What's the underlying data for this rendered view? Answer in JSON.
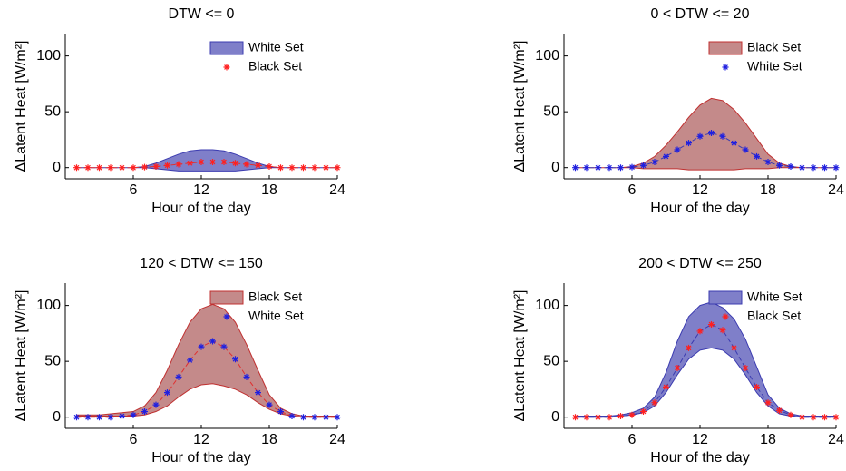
{
  "chart_data": [
    {
      "type": "band",
      "title": "DTW <= 0",
      "xlabel": "Hour of the day",
      "ylabel": "ΔLatent Heat [W/m²]",
      "x": [
        1,
        2,
        3,
        4,
        5,
        6,
        7,
        8,
        9,
        10,
        11,
        12,
        13,
        14,
        15,
        16,
        17,
        18,
        19,
        20,
        21,
        22,
        23,
        24
      ],
      "series": [
        {
          "name": "White Set",
          "color": "#7f7fc9",
          "edge": "#3b3bb0",
          "upper": [
            0,
            0,
            0,
            0,
            0,
            0,
            1,
            4,
            8,
            12,
            15,
            16,
            16,
            15,
            12,
            8,
            4,
            1,
            0,
            0,
            0,
            0,
            0,
            0
          ],
          "lower": [
            0,
            0,
            0,
            0,
            0,
            0,
            0,
            -1,
            -2,
            -3,
            -3,
            -3,
            -3,
            -3,
            -3,
            -2,
            -1,
            0,
            0,
            0,
            0,
            0,
            0,
            0
          ]
        },
        {
          "name": "Black Set",
          "color": "#ff2020",
          "line_color": "#e03030",
          "values": [
            0,
            0,
            0,
            0,
            0,
            0,
            0.5,
            1,
            2,
            3,
            4,
            5,
            5,
            5,
            4,
            3,
            2,
            1,
            0,
            0,
            0,
            0,
            0,
            0
          ]
        }
      ],
      "xlim": [
        0,
        24
      ],
      "xticks": [
        6,
        12,
        18,
        24
      ],
      "ylim": [
        -10,
        120
      ],
      "yticks": [
        0,
        50,
        100
      ]
    },
    {
      "type": "band",
      "title": "0 < DTW <= 20",
      "xlabel": "Hour of the day",
      "ylabel": "ΔLatent Heat [W/m²]",
      "x": [
        1,
        2,
        3,
        4,
        5,
        6,
        7,
        8,
        9,
        10,
        11,
        12,
        13,
        14,
        15,
        16,
        17,
        18,
        19,
        20,
        21,
        22,
        23,
        24
      ],
      "series": [
        {
          "name": "Black Set",
          "color": "#c48a8a",
          "edge": "#c03030",
          "upper": [
            0,
            0,
            0,
            0,
            0,
            1,
            4,
            10,
            20,
            32,
            45,
            56,
            62,
            60,
            52,
            40,
            26,
            12,
            4,
            1,
            0,
            0,
            0,
            0
          ],
          "lower": [
            0,
            0,
            0,
            0,
            0,
            0,
            -1,
            -1,
            -1,
            -1,
            -2,
            -2,
            -2,
            -2,
            -2,
            -1,
            -1,
            -1,
            0,
            0,
            0,
            0,
            0,
            0
          ]
        },
        {
          "name": "White Set",
          "color": "#2020e0",
          "line_color": "#3b3bb0",
          "values": [
            0,
            0,
            0,
            0,
            0,
            0.5,
            2,
            5,
            10,
            16,
            22,
            28,
            31,
            28,
            22,
            16,
            10,
            5,
            2,
            1,
            0,
            0,
            0,
            0
          ]
        }
      ],
      "xlim": [
        0,
        24
      ],
      "xticks": [
        6,
        12,
        18,
        24
      ],
      "ylim": [
        -10,
        120
      ],
      "yticks": [
        0,
        50,
        100
      ]
    },
    {
      "type": "band",
      "title": "120 < DTW <= 150",
      "xlabel": "Hour of the day",
      "ylabel": "ΔLatent Heat [W/m²]",
      "x": [
        1,
        2,
        3,
        4,
        5,
        6,
        7,
        8,
        9,
        10,
        11,
        12,
        13,
        14,
        15,
        16,
        17,
        18,
        19,
        20,
        21,
        22,
        23,
        24
      ],
      "series": [
        {
          "name": "Black Set",
          "color": "#c48a8a",
          "edge": "#c03030",
          "upper": [
            2,
            2,
            2,
            3,
            4,
            5,
            10,
            22,
            42,
            65,
            85,
            97,
            101,
            97,
            85,
            65,
            42,
            20,
            8,
            3,
            1,
            1,
            1,
            1
          ],
          "lower": [
            1,
            1,
            1,
            1,
            1,
            1,
            2,
            5,
            10,
            18,
            25,
            29,
            30,
            28,
            25,
            20,
            13,
            7,
            3,
            1,
            0,
            0,
            0,
            0
          ]
        },
        {
          "name": "White Set",
          "color": "#2020e0",
          "line_color": "#e03030",
          "values": [
            0,
            0,
            0,
            0,
            1,
            2,
            5,
            11,
            22,
            36,
            51,
            63,
            68,
            63,
            52,
            36,
            22,
            11,
            5,
            1,
            0,
            0,
            0,
            0
          ]
        }
      ],
      "xlim": [
        0,
        24
      ],
      "xticks": [
        6,
        12,
        18,
        24
      ],
      "ylim": [
        -10,
        120
      ],
      "yticks": [
        0,
        50,
        100
      ]
    },
    {
      "type": "band",
      "title": "200 < DTW <= 250",
      "xlabel": "Hour of the day",
      "ylabel": "ΔLatent Heat [W/m²]",
      "x": [
        1,
        2,
        3,
        4,
        5,
        6,
        7,
        8,
        9,
        10,
        11,
        12,
        13,
        14,
        15,
        16,
        17,
        18,
        19,
        20,
        21,
        22,
        23,
        24
      ],
      "series": [
        {
          "name": "White Set",
          "color": "#7f7fc9",
          "edge": "#3b3bb0",
          "upper": [
            1,
            1,
            1,
            1,
            2,
            4,
            8,
            18,
            40,
            68,
            90,
            100,
            103,
            98,
            88,
            70,
            45,
            20,
            8,
            3,
            1,
            1,
            1,
            1
          ],
          "lower": [
            0,
            0,
            0,
            0,
            1,
            2,
            4,
            10,
            22,
            38,
            52,
            60,
            62,
            60,
            52,
            38,
            22,
            10,
            3,
            1,
            0,
            0,
            0,
            0
          ]
        },
        {
          "name": "Black Set",
          "color": "#ff2020",
          "line_color": "#3b3bb0",
          "values": [
            0,
            0,
            0,
            0,
            1,
            2,
            5,
            13,
            27,
            44,
            62,
            77,
            83,
            78,
            62,
            44,
            27,
            13,
            6,
            2,
            0,
            0,
            0,
            0
          ]
        }
      ],
      "xlim": [
        0,
        24
      ],
      "xticks": [
        6,
        12,
        18,
        24
      ],
      "ylim": [
        -10,
        120
      ],
      "yticks": [
        0,
        50,
        100
      ]
    }
  ]
}
